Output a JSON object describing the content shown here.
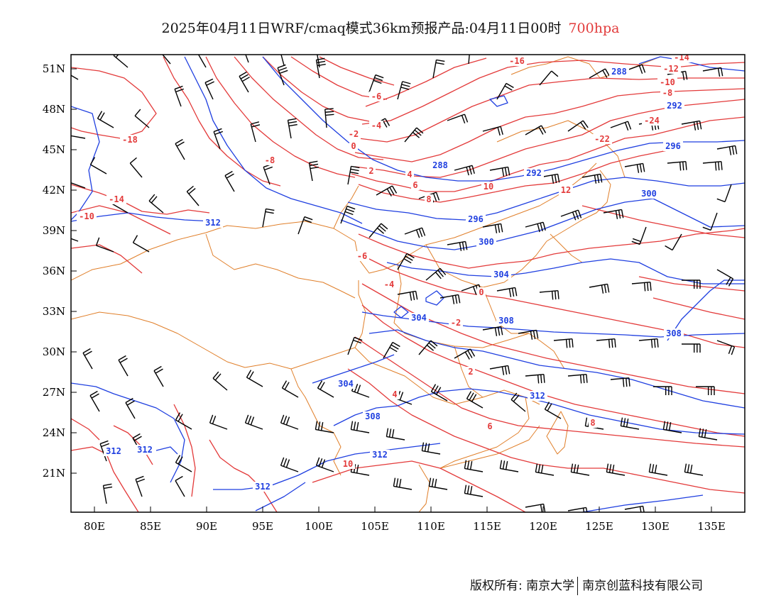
{
  "title": {
    "main": "2025年04月11日WRF/cmaq模式36km预报产品:04月11日00时",
    "level": "700hpa"
  },
  "axes": {
    "lon_ticks": [
      "80E",
      "85E",
      "90E",
      "95E",
      "100E",
      "105E",
      "110E",
      "115E",
      "120E",
      "125E",
      "130E",
      "135E"
    ],
    "lat_ticks": [
      "51N",
      "48N",
      "45N",
      "42N",
      "39N",
      "36N",
      "33N",
      "30N",
      "27N",
      "24N",
      "21N"
    ],
    "lon_range": [
      78,
      138
    ],
    "lat_range": [
      18,
      52
    ]
  },
  "colors": {
    "temperature": "#e33a3a",
    "geopotential": "#1f3fe0",
    "boundary": "#e07f2a",
    "wind": "#000000"
  },
  "geopotential_labels": [
    "312",
    "312",
    "312",
    "312",
    "308",
    "304",
    "304",
    "308",
    "312",
    "300",
    "296",
    "292",
    "288",
    "288",
    "292",
    "296",
    "300",
    "304",
    "308",
    "312"
  ],
  "temperature_labels": [
    "-16",
    "-14",
    "-12",
    "-10",
    "-8",
    "-6",
    "-4",
    "-2",
    "0",
    "2",
    "4",
    "6",
    "8",
    "10",
    "12",
    "-24",
    "-22",
    "-18",
    "-14",
    "-10",
    "-8",
    "-6",
    "-4",
    "-2",
    "0",
    "2",
    "4",
    "6",
    "8",
    "10"
  ],
  "footer": {
    "left": "版权所有: 南京大学",
    "right": "南京创蓝科技有限公司"
  }
}
